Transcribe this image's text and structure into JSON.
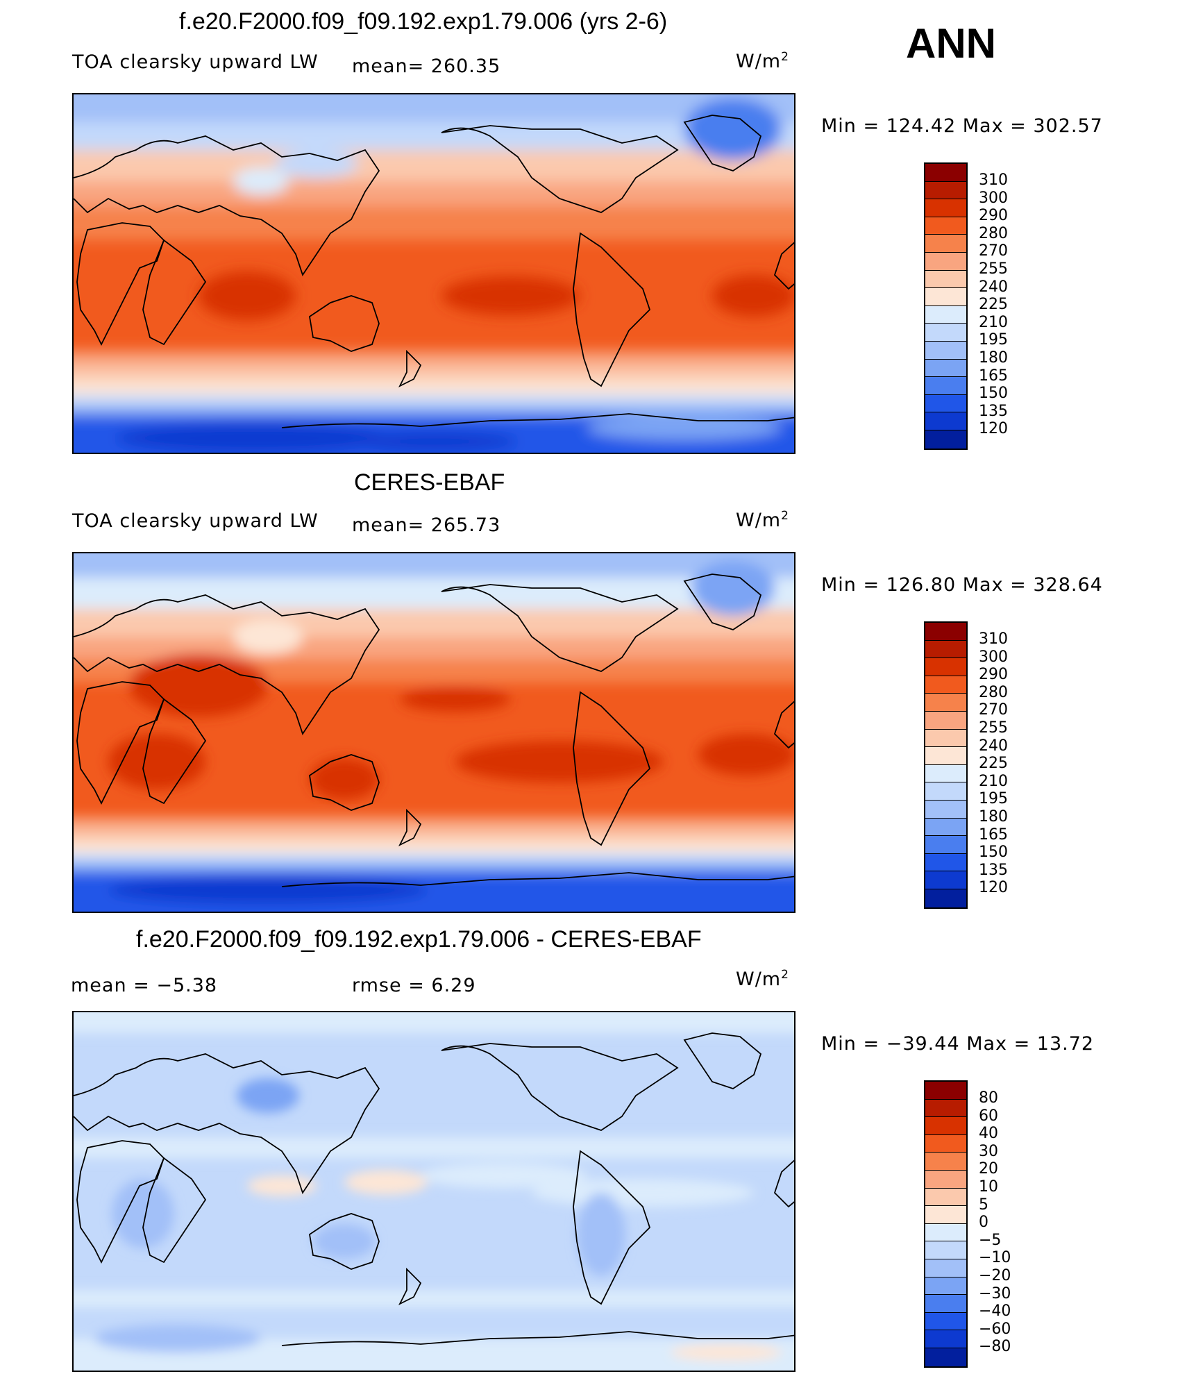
{
  "season": "ANN",
  "units": "W/m",
  "units_exp": "2",
  "panels": [
    {
      "title": "f.e20.F2000.f09_f09.192.exp1.79.006 (yrs 2-6)",
      "left_label": "TOA clearsky upward LW",
      "mid_label": "mean=  260.35",
      "minmax": "Min  =  124.42  Max  =  302.57"
    },
    {
      "title": "CERES-EBAF",
      "left_label": "TOA clearsky upward LW",
      "mid_label": "mean=  265.73",
      "minmax": "Min  =  126.80  Max  =  328.64"
    },
    {
      "title": "f.e20.F2000.f09_f09.192.exp1.79.006 - CERES-EBAF",
      "left_label": "mean  =    −5.38",
      "mid_label": "rmse  =     6.29",
      "minmax": "Min  = −39.44  Max  =    13.72"
    }
  ],
  "colorbar_abs": {
    "ticks": [
      "310",
      "300",
      "290",
      "280",
      "270",
      "255",
      "240",
      "225",
      "210",
      "195",
      "180",
      "165",
      "150",
      "135",
      "120"
    ],
    "colors": [
      "#8b0000",
      "#b71c00",
      "#d83200",
      "#f15a1e",
      "#f6824b",
      "#f9a580",
      "#fbc9ad",
      "#fde6d6",
      "#dcecfc",
      "#c3d9fb",
      "#a2c0f8",
      "#7ba4f4",
      "#4a7eef",
      "#2056e8",
      "#0d3ad0",
      "#021f9e"
    ]
  },
  "colorbar_diff": {
    "ticks": [
      "80",
      "60",
      "40",
      "30",
      "20",
      "10",
      "5",
      "0",
      "−5",
      "−10",
      "−20",
      "−30",
      "−40",
      "−60",
      "−80"
    ],
    "colors": [
      "#8b0000",
      "#b71c00",
      "#d83200",
      "#f15a1e",
      "#f6824b",
      "#f9a580",
      "#fbc9ad",
      "#fde6d6",
      "#dcecfc",
      "#c3d9fb",
      "#a2c0f8",
      "#7ba4f4",
      "#4a7eef",
      "#2056e8",
      "#0d3ad0",
      "#021f9e"
    ]
  }
}
